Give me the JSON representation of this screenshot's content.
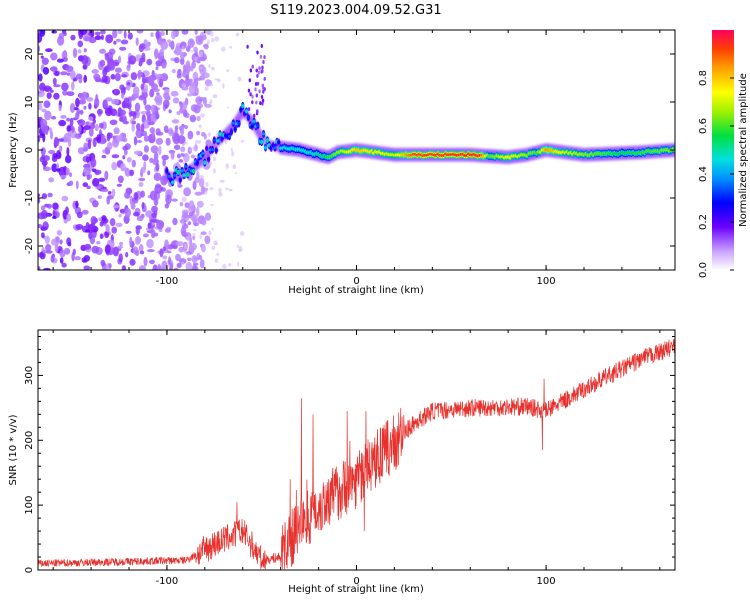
{
  "title": "S119.2023.004.09.52.G31",
  "chart_data": [
    {
      "type": "heatmap",
      "xlabel": "Height of straight line (km)",
      "ylabel": "Frequency (Hz)",
      "xlim": [
        -168,
        168
      ],
      "ylim": [
        -25,
        25
      ],
      "x_ticks": [
        -100,
        0,
        100
      ],
      "y_ticks": [
        -20,
        -10,
        0,
        10,
        20
      ],
      "colorbar": {
        "label": "Normalized spectral amplitude",
        "range": [
          0,
          1
        ],
        "ticks": [
          "0.0",
          "0.2",
          "0.4",
          "0.6",
          "0.8"
        ]
      },
      "ridge": [
        {
          "x": -95,
          "y": -5.5
        },
        {
          "x": -90,
          "y": -4.5
        },
        {
          "x": -85,
          "y": -3.5
        },
        {
          "x": -80,
          "y": -1.5
        },
        {
          "x": -75,
          "y": 1
        },
        {
          "x": -70,
          "y": 3
        },
        {
          "x": -65,
          "y": 5
        },
        {
          "x": -60,
          "y": 8
        },
        {
          "x": -55,
          "y": 6
        },
        {
          "x": -50,
          "y": 2.5
        },
        {
          "x": -45,
          "y": 1
        },
        {
          "x": -40,
          "y": 0.5
        },
        {
          "x": -30,
          "y": 0
        },
        {
          "x": -20,
          "y": -1
        },
        {
          "x": -15,
          "y": -1.5
        },
        {
          "x": -10,
          "y": -0.5
        },
        {
          "x": 0,
          "y": 0
        },
        {
          "x": 20,
          "y": -1
        },
        {
          "x": 60,
          "y": -1
        },
        {
          "x": 80,
          "y": -1.5
        },
        {
          "x": 90,
          "y": -1
        },
        {
          "x": 100,
          "y": 0
        },
        {
          "x": 120,
          "y": -1
        },
        {
          "x": 150,
          "y": -0.5
        },
        {
          "x": 168,
          "y": 0
        }
      ],
      "ridge_strength": [
        {
          "x": -40,
          "v": 0.45
        },
        {
          "x": -20,
          "v": 0.5
        },
        {
          "x": 0,
          "v": 0.8
        },
        {
          "x": 20,
          "v": 0.7
        },
        {
          "x": 30,
          "v": 0.92
        },
        {
          "x": 65,
          "v": 0.95
        },
        {
          "x": 70,
          "v": 0.6
        },
        {
          "x": 80,
          "v": 0.75
        },
        {
          "x": 95,
          "v": 0.6
        },
        {
          "x": 100,
          "v": 0.85
        },
        {
          "x": 110,
          "v": 0.7
        },
        {
          "x": 140,
          "v": 0.55
        },
        {
          "x": 168,
          "v": 0.65
        }
      ]
    },
    {
      "type": "line",
      "xlabel": "Height of straight line (km)",
      "ylabel": "SNR (10 * v/v)",
      "xlim": [
        -168,
        168
      ],
      "ylim": [
        0,
        370
      ],
      "x_ticks": [
        -100,
        0,
        100
      ],
      "y_ticks": [
        0,
        100,
        200,
        300
      ],
      "color": "#e8302c",
      "trend": [
        {
          "x": -168,
          "y": 10
        },
        {
          "x": -90,
          "y": 15
        },
        {
          "x": -75,
          "y": 40
        },
        {
          "x": -60,
          "y": 60
        },
        {
          "x": -50,
          "y": 15
        },
        {
          "x": -40,
          "y": 20
        },
        {
          "x": -30,
          "y": 70
        },
        {
          "x": -15,
          "y": 110
        },
        {
          "x": 0,
          "y": 140
        },
        {
          "x": 10,
          "y": 170
        },
        {
          "x": 20,
          "y": 195
        },
        {
          "x": 30,
          "y": 225
        },
        {
          "x": 40,
          "y": 245
        },
        {
          "x": 60,
          "y": 250
        },
        {
          "x": 90,
          "y": 252
        },
        {
          "x": 100,
          "y": 245
        },
        {
          "x": 110,
          "y": 262
        },
        {
          "x": 130,
          "y": 295
        },
        {
          "x": 150,
          "y": 325
        },
        {
          "x": 168,
          "y": 345
        }
      ],
      "spikes": [
        {
          "x": -63,
          "y": 105
        },
        {
          "x": -35,
          "y": 140
        },
        {
          "x": -29,
          "y": 265
        },
        {
          "x": -23,
          "y": 240
        },
        {
          "x": -5,
          "y": 245
        },
        {
          "x": 5,
          "y": 245
        },
        {
          "x": 4,
          "y": 60
        },
        {
          "x": 98,
          "y": 185
        },
        {
          "x": 99,
          "y": 295
        }
      ]
    }
  ]
}
